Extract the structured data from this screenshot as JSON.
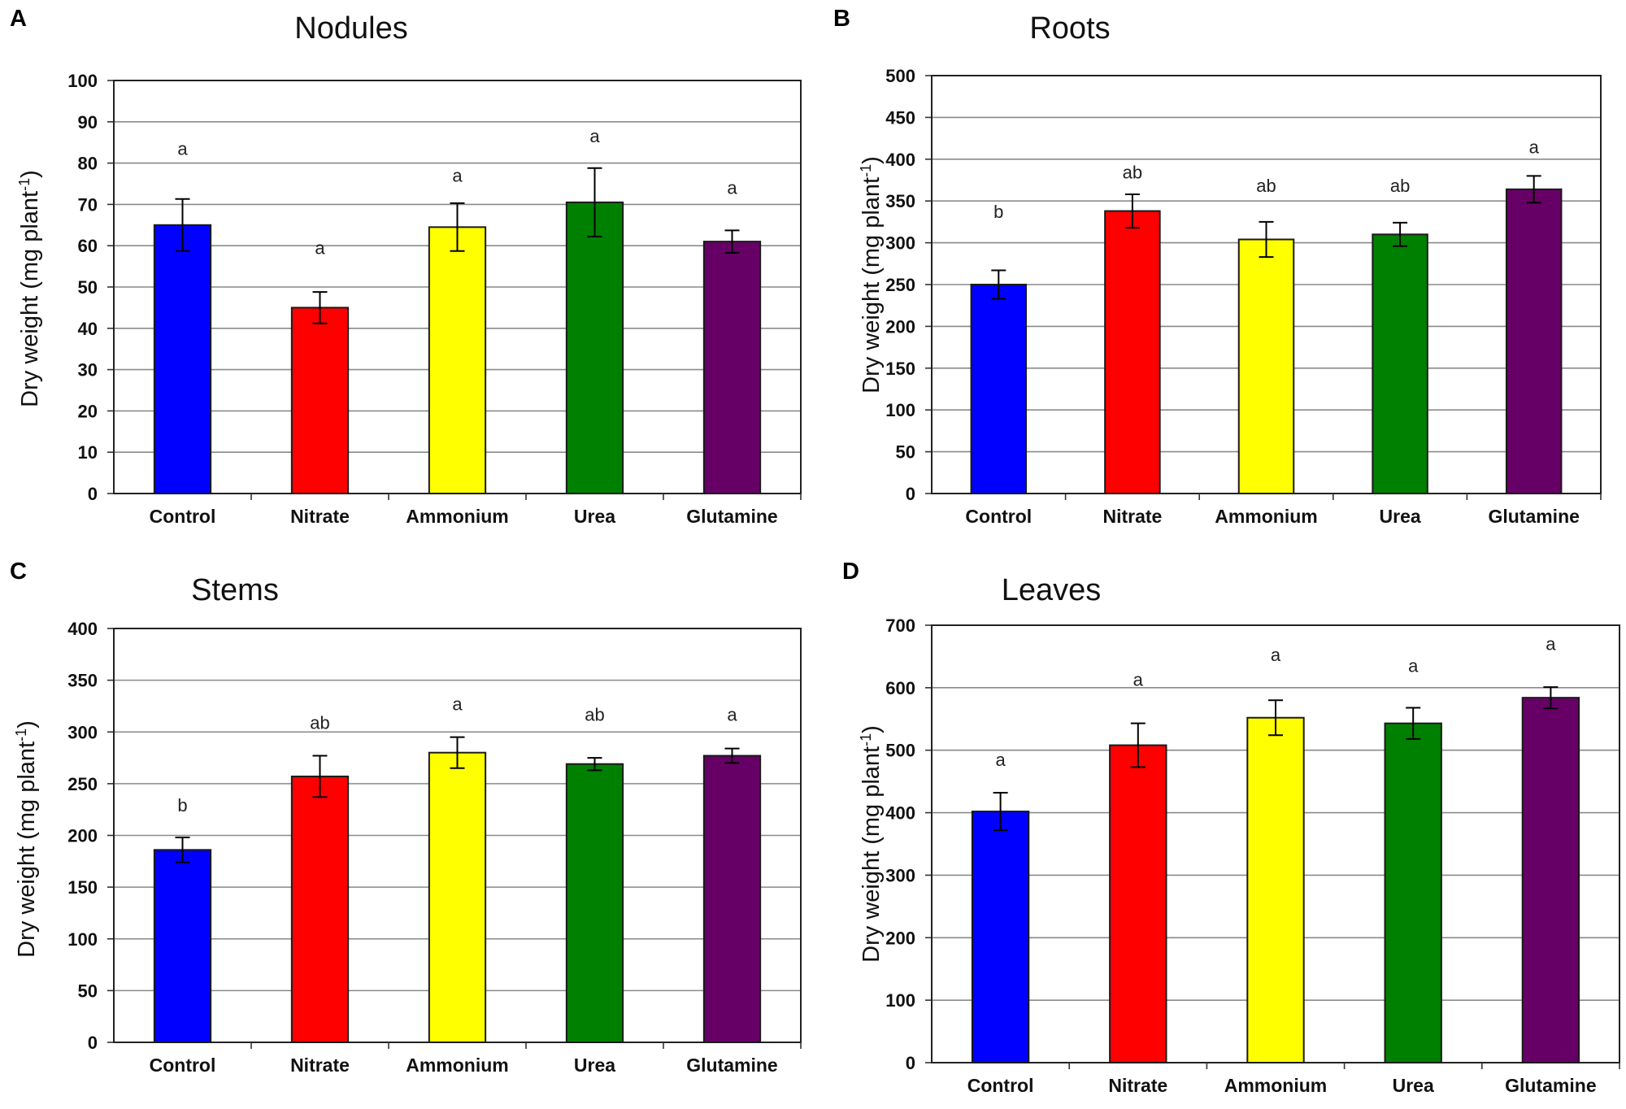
{
  "figure": {
    "bar_colors": [
      "#0000ff",
      "#ff0000",
      "#ffff00",
      "#008000",
      "#660066"
    ]
  },
  "chart_data": [
    {
      "panel": "A",
      "type": "bar",
      "title": "Nodules",
      "ylabel": "Dry weight (mg plant",
      "ylabel_sup": "-1",
      "ylabel_end": ")",
      "categories": [
        "Control",
        "Nitrate",
        "Ammonium",
        "Urea",
        "Glutamine"
      ],
      "values": [
        65,
        45,
        64.5,
        70.5,
        61
      ],
      "errors": [
        6.3,
        3.8,
        5.8,
        8.3,
        2.7
      ],
      "significance": [
        "a",
        "a",
        "a",
        "a",
        "a"
      ],
      "sig_y": [
        82,
        58,
        75.5,
        85,
        72.5
      ],
      "ylim": [
        0,
        100
      ],
      "yticks": [
        0,
        10,
        20,
        30,
        40,
        50,
        60,
        70,
        80,
        90,
        100
      ],
      "grid": true
    },
    {
      "panel": "B",
      "type": "bar",
      "title": "Roots",
      "ylabel": "Dry weight (mg plant",
      "ylabel_sup": "-1",
      "ylabel_end": ")",
      "categories": [
        "Control",
        "Nitrate",
        "Ammonium",
        "Urea",
        "Glutamine"
      ],
      "values": [
        250,
        338,
        304,
        310,
        364
      ],
      "errors": [
        17,
        20,
        21,
        14,
        16
      ],
      "significance": [
        "b",
        "ab",
        "ab",
        "ab",
        "a"
      ],
      "sig_y": [
        330,
        377,
        361,
        361,
        407
      ],
      "ylim": [
        0,
        500
      ],
      "yticks": [
        0,
        50,
        100,
        150,
        200,
        250,
        300,
        350,
        400,
        450,
        500
      ],
      "grid": true
    },
    {
      "panel": "C",
      "type": "bar",
      "title": "Stems",
      "ylabel": "Dry weight (mg plant",
      "ylabel_sup": "-1",
      "ylabel_end": ")",
      "categories": [
        "Control",
        "Nitrate",
        "Ammonium",
        "Urea",
        "Glutamine"
      ],
      "values": [
        186,
        257,
        280,
        269,
        277
      ],
      "errors": [
        12,
        20,
        15,
        6,
        7
      ],
      "significance": [
        "b",
        "ab",
        "a",
        "ab",
        "a"
      ],
      "sig_y": [
        223,
        303,
        321,
        311,
        311
      ],
      "ylim": [
        0,
        400
      ],
      "yticks": [
        0,
        50,
        100,
        150,
        200,
        250,
        300,
        350,
        400
      ],
      "grid": true
    },
    {
      "panel": "D",
      "type": "bar",
      "title": "Leaves",
      "ylabel": "Dry weight (mg plant",
      "ylabel_sup": "-1",
      "ylabel_end": ")",
      "categories": [
        "Control",
        "Nitrate",
        "Ammonium",
        "Urea",
        "Glutamine"
      ],
      "values": [
        402,
        508,
        552,
        543,
        584
      ],
      "errors": [
        30,
        35,
        28,
        25,
        17
      ],
      "significance": [
        "a",
        "a",
        "a",
        "a",
        "a"
      ],
      "sig_y": [
        475,
        603,
        643,
        625,
        660
      ],
      "ylim": [
        0,
        700
      ],
      "yticks": [
        0,
        100,
        200,
        300,
        400,
        500,
        600,
        700
      ],
      "grid": true
    }
  ]
}
